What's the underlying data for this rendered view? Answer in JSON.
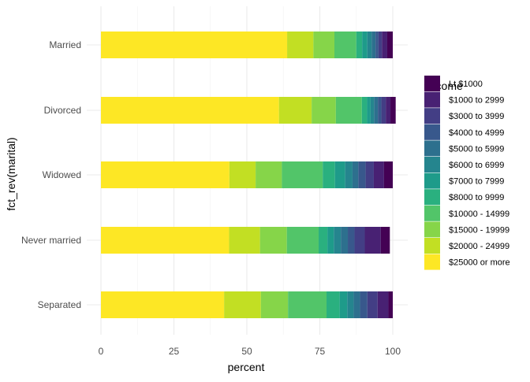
{
  "chart_data": {
    "type": "bar",
    "orientation": "horizontal",
    "stacked": true,
    "xlabel": "percent",
    "ylabel": "fct_rev(marital)",
    "xlim": [
      0,
      100
    ],
    "xticks": [
      0,
      25,
      50,
      75,
      100
    ],
    "grid": true,
    "legend_title": "rincome",
    "legend_position": "right",
    "categories": [
      "Married",
      "Divorced",
      "Widowed",
      "Never married",
      "Separated"
    ],
    "series": [
      {
        "name": "$25000 or more",
        "color": "#FDE725",
        "values": [
          63.8,
          61.0,
          44.0,
          43.9,
          42.2
        ]
      },
      {
        "name": "$20000 - 24999",
        "color": "#C2DF23",
        "values": [
          9.0,
          11.2,
          9.0,
          10.6,
          12.6
        ]
      },
      {
        "name": "$15000 - 19999",
        "color": "#86D549",
        "values": [
          7.2,
          8.3,
          9.0,
          9.2,
          9.3
        ]
      },
      {
        "name": "$10000 - 14999",
        "color": "#52C569",
        "values": [
          7.5,
          8.9,
          14.0,
          10.9,
          13.2
        ]
      },
      {
        "name": "$8000 to 9999",
        "color": "#2AB07F",
        "values": [
          2.0,
          1.8,
          4.2,
          3.0,
          4.5
        ]
      },
      {
        "name": "$7000 to 7999",
        "color": "#1E9B8A",
        "values": [
          1.8,
          1.2,
          3.5,
          2.2,
          2.6
        ]
      },
      {
        "name": "$6000 to 6999",
        "color": "#25858E",
        "values": [
          1.5,
          1.2,
          2.5,
          2.4,
          2.2
        ]
      },
      {
        "name": "$5000 to 5999",
        "color": "#2D708E",
        "values": [
          1.3,
          1.3,
          2.0,
          2.4,
          2.2
        ]
      },
      {
        "name": "$4000 to 4999",
        "color": "#38588C",
        "values": [
          1.0,
          1.2,
          2.5,
          2.3,
          2.5
        ]
      },
      {
        "name": "$3000 to 3999",
        "color": "#433E85",
        "values": [
          1.2,
          1.5,
          2.8,
          3.5,
          3.5
        ]
      },
      {
        "name": "$1000 to 2999",
        "color": "#482173",
        "values": [
          1.8,
          1.6,
          3.5,
          5.5,
          3.7
        ]
      },
      {
        "name": "Lt $1000",
        "color": "#440154",
        "values": [
          1.9,
          1.8,
          3.0,
          3.1,
          1.5
        ]
      }
    ]
  }
}
